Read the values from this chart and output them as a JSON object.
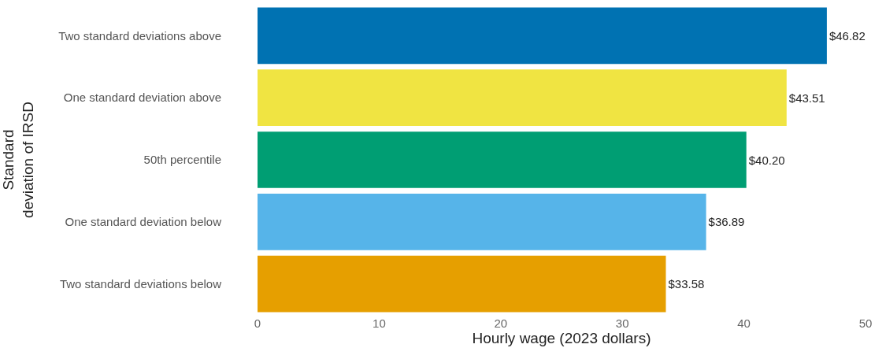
{
  "chart_data": {
    "type": "bar",
    "orientation": "horizontal",
    "categories": [
      "Two standard deviations above",
      "One standard deviation above",
      "50th percentile",
      "One standard deviation below",
      "Two standard deviations below"
    ],
    "values": [
      46.82,
      43.51,
      40.2,
      36.89,
      33.58
    ],
    "colors": [
      "#0072b2",
      "#f0e442",
      "#009e73",
      "#56b4e9",
      "#e69f00"
    ],
    "value_labels": [
      "$46.82",
      "$43.51",
      "$40.20",
      "$36.89",
      "$33.58"
    ],
    "xlabel": "Hourly wage (2023 dollars)",
    "ylabel": "Standard deviation of IRSD",
    "xlim": [
      0,
      50
    ],
    "xticks": [
      0,
      10,
      20,
      30,
      40,
      50
    ],
    "grid": false
  }
}
